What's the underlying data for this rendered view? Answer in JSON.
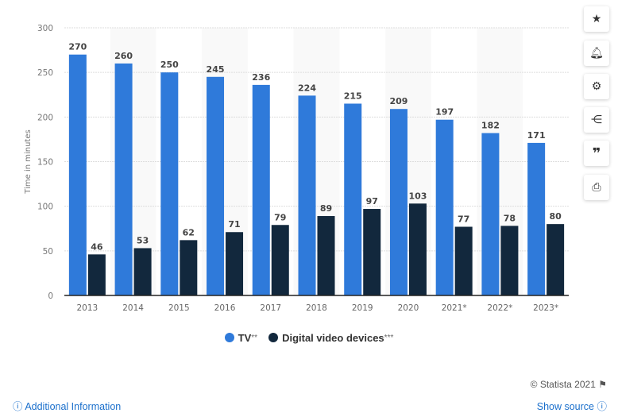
{
  "chart_data": {
    "type": "bar",
    "categories": [
      "2013",
      "2014",
      "2015",
      "2016",
      "2017",
      "2018",
      "2019",
      "2020",
      "2021*",
      "2022*",
      "2023*"
    ],
    "series": [
      {
        "name": "TV**",
        "color": "#2f7ada",
        "values": [
          270,
          260,
          250,
          245,
          236,
          224,
          215,
          209,
          197,
          182,
          171
        ]
      },
      {
        "name": "Digital video devices***",
        "color": "#12283d",
        "values": [
          46,
          53,
          62,
          71,
          79,
          89,
          97,
          103,
          77,
          78,
          80
        ]
      }
    ],
    "xlabel": "",
    "ylabel": "Time in minutes",
    "ylim": [
      0,
      300
    ],
    "yticks": [
      0,
      50,
      100,
      150,
      200,
      250,
      300
    ],
    "grid": true,
    "legend_position": "bottom"
  },
  "legend": {
    "tv": "TV",
    "tv_sup": "**",
    "dvd": "Digital video devices",
    "dvd_sup": "***"
  },
  "footer": {
    "copyright": "© Statista 2021",
    "additional_info": "Additional Information",
    "show_source": "Show source"
  },
  "sidebar": [
    "star-icon",
    "bell-icon",
    "gear-icon",
    "share-icon",
    "quote-icon",
    "print-icon"
  ]
}
